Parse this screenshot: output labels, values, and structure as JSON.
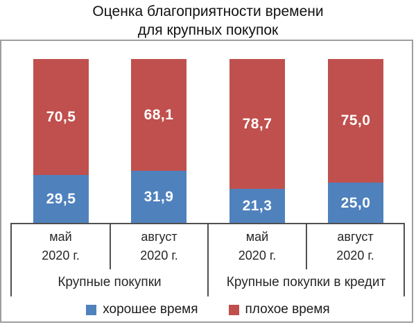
{
  "title": {
    "line1": "Оценка благоприятности времени",
    "line2": "для крупных покупок"
  },
  "chart_data": {
    "type": "bar",
    "stacked": true,
    "unit": "percent",
    "title": "Оценка благоприятности времени для крупных покупок",
    "categories": [
      "май 2020 г.",
      "август 2020 г.",
      "май 2020 г.",
      "август 2020 г."
    ],
    "category_lines": [
      {
        "line1": "май",
        "line2": "2020 г."
      },
      {
        "line1": "август",
        "line2": "2020 г."
      },
      {
        "line1": "май",
        "line2": "2020 г."
      },
      {
        "line1": "август",
        "line2": "2020 г."
      }
    ],
    "group_labels": [
      "Крупные покупки",
      "Крупные покупки в кредит"
    ],
    "series": [
      {
        "name": "хорошее время",
        "color": "#4F81BD",
        "values": [
          29.5,
          31.9,
          21.3,
          25.0
        ],
        "labels": [
          "29,5",
          "31,9",
          "21,3",
          "25,0"
        ]
      },
      {
        "name": "плохое время",
        "color": "#C0504D",
        "values": [
          70.5,
          68.1,
          78.7,
          75.0
        ],
        "labels": [
          "70,5",
          "68,1",
          "78,7",
          "75,0"
        ]
      }
    ],
    "ylim": [
      0,
      100
    ],
    "grid": false,
    "legend_position": "bottom",
    "axis_line_color": "#4f4f4f"
  },
  "legend": {
    "items": [
      {
        "label": "хорошее время",
        "color": "#4F81BD"
      },
      {
        "label": "плохое время",
        "color": "#C0504D"
      }
    ]
  }
}
